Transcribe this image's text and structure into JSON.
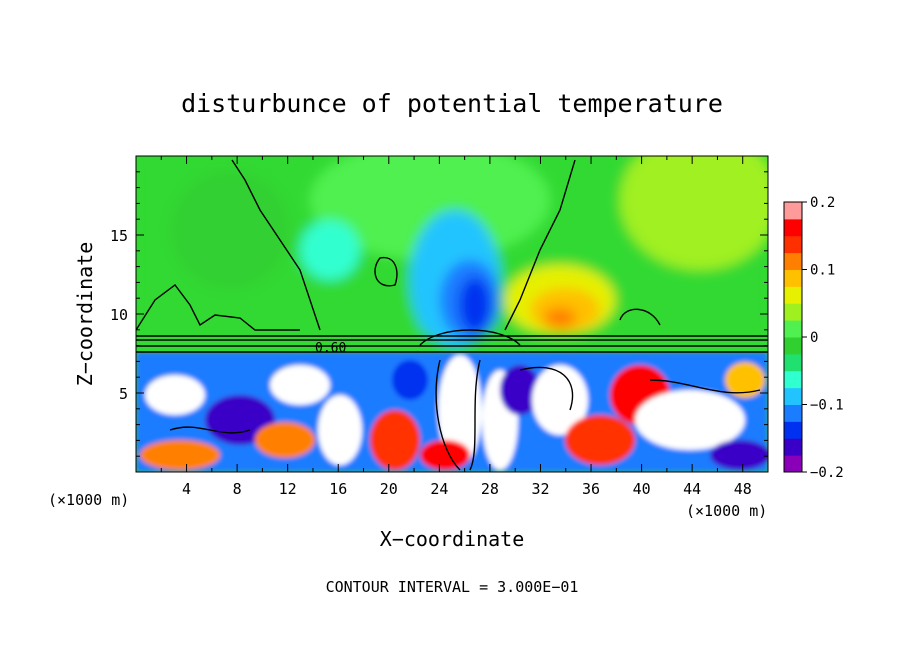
{
  "chart_data": {
    "type": "heatmap",
    "title": "disturbunce of potential temperature",
    "xlabel": "X−coordinate",
    "ylabel": "Z−coordinate",
    "x_unit": "(×1000 m)",
    "x_unit_right": "(×1000 m)",
    "xlim": [
      0,
      50
    ],
    "ylim": [
      0,
      20
    ],
    "x_ticks": [
      4,
      8,
      12,
      16,
      20,
      24,
      28,
      32,
      36,
      40,
      44,
      48
    ],
    "x_tick_labels": [
      "4",
      "8",
      "12",
      "16",
      "20",
      "24",
      "28",
      "32",
      "36",
      "40",
      "44",
      "48"
    ],
    "y_ticks": [
      5,
      10,
      15
    ],
    "y_tick_labels": [
      "5",
      "10",
      "15"
    ],
    "colorbar": {
      "range": [
        -0.2,
        0.2
      ],
      "ticks": [
        0.2,
        0.1,
        0,
        -0.1,
        -0.2
      ],
      "tick_labels": [
        "0.2",
        "0.1",
        "0",
        "−0.1",
        "−0.2"
      ],
      "colors": [
        "#8a00b8",
        "#3a00c8",
        "#0030f0",
        "#1a7cff",
        "#22c4ff",
        "#30ffd0",
        "#20e070",
        "#30d030",
        "#50f050",
        "#a0f020",
        "#e6f000",
        "#ffc000",
        "#ff8000",
        "#ff3000",
        "#ff0000",
        "#ff9a9a"
      ]
    },
    "contour_label": "0.60",
    "footer": "CONTOUR INTERVAL = 3.000E−01"
  }
}
